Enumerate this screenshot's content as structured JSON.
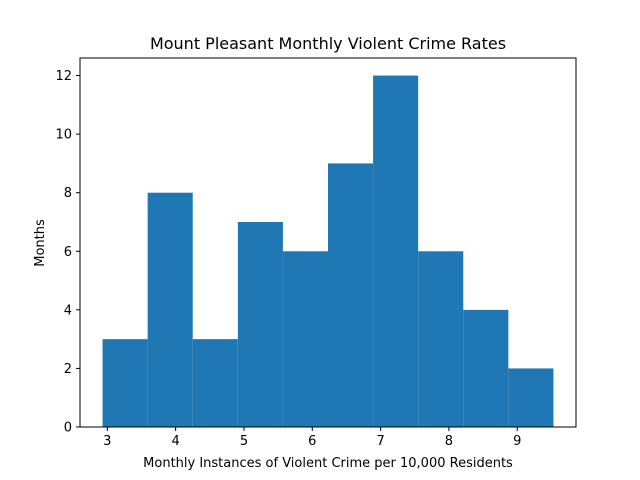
{
  "chart_data": {
    "type": "bar",
    "title": "Mount Pleasant Monthly Violent Crime Rates",
    "xlabel": "Monthly Instances of Violent Crime per 10,000 Residents",
    "ylabel": "Months",
    "bin_edges": [
      2.93,
      3.59,
      4.25,
      4.91,
      5.57,
      6.23,
      6.89,
      7.55,
      8.21,
      8.87,
      9.53
    ],
    "values": [
      3,
      8,
      3,
      7,
      6,
      9,
      12,
      6,
      4,
      2
    ],
    "xlim": [
      2.6,
      9.86
    ],
    "ylim": [
      0,
      12.6
    ],
    "xticks": [
      3,
      4,
      5,
      6,
      7,
      8,
      9
    ],
    "yticks": [
      0,
      2,
      4,
      6,
      8,
      10,
      12
    ],
    "bar_color": "#1f77b4",
    "grid": false
  }
}
